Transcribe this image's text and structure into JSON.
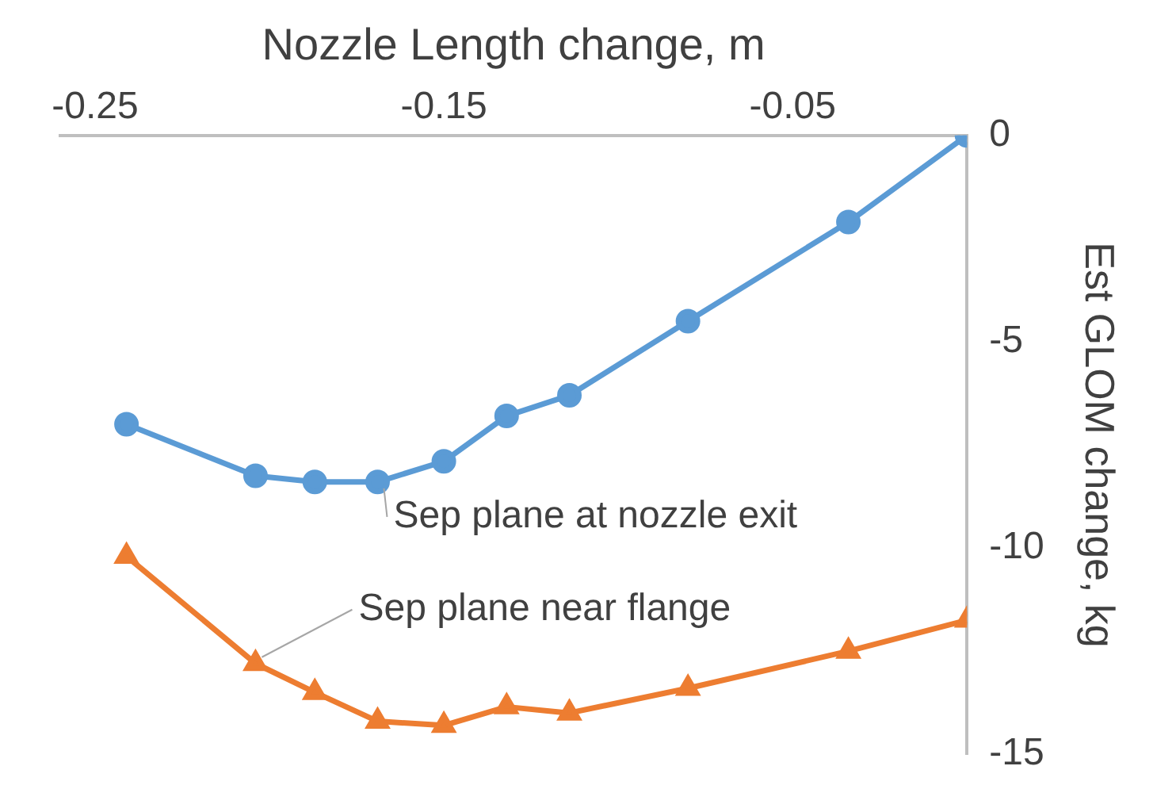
{
  "chart_data": {
    "type": "line",
    "xlabel": "Nozzle Length change, m",
    "ylabel": "Est GLOM change, kg",
    "xlim": [
      -0.26,
      0
    ],
    "xticks": [
      -0.25,
      -0.15,
      -0.05
    ],
    "ylim": [
      -15,
      0
    ],
    "yticks": [
      0,
      -5,
      -10,
      -15
    ],
    "grid": false,
    "legend": false,
    "series": [
      {
        "name": "Sep plane at nozzle exit",
        "color": "#5b9bd5",
        "marker": "circle",
        "x": [
          -0.241,
          -0.204,
          -0.187,
          -0.169,
          -0.15,
          -0.132,
          -0.114,
          -0.08,
          -0.034,
          0
        ],
        "values": [
          -7.0,
          -8.25,
          -8.4,
          -8.4,
          -7.9,
          -6.8,
          -6.3,
          -4.5,
          -2.1,
          0
        ]
      },
      {
        "name": "Sep plane near flange",
        "color": "#ed7d31",
        "marker": "triangle",
        "x": [
          -0.241,
          -0.204,
          -0.187,
          -0.169,
          -0.15,
          -0.132,
          -0.114,
          -0.08,
          -0.034,
          0
        ],
        "values": [
          -10.2,
          -12.8,
          -13.5,
          -14.2,
          -14.3,
          -13.85,
          -14.0,
          -13.4,
          -12.5,
          -11.75
        ]
      }
    ]
  }
}
